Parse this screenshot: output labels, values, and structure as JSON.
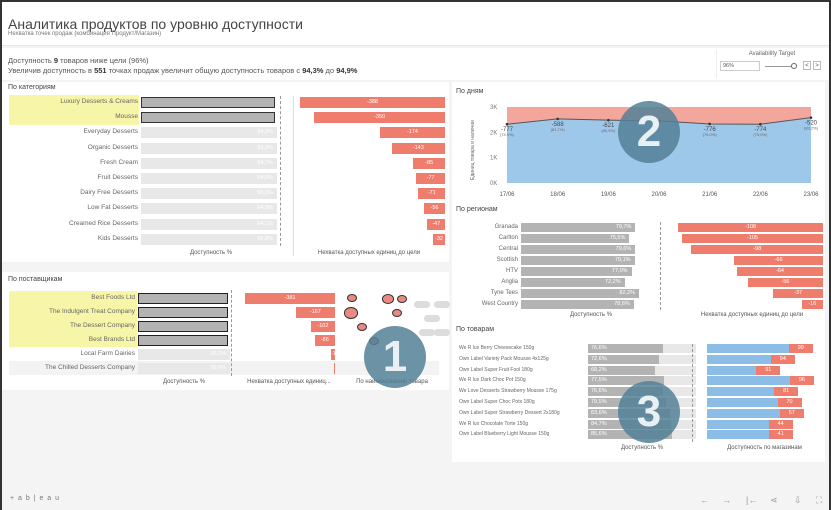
{
  "header": {
    "title": "Аналитика продуктов по уровню доступности",
    "subtitle": "Нехватка точек продаж (комбинация Продукт/Магазин)"
  },
  "info": {
    "line1_pre": "Доступность ",
    "line1_bold": "9",
    "line1_post": " товаров ниже цели (96%)",
    "line2_a": "Увеличив доступность в ",
    "line2_b": "551",
    "line2_c": " точках продаж увеличит общую доступность товаров с ",
    "line2_d": "94,3%",
    "line2_e": " до ",
    "line2_f": "94,9%"
  },
  "target": {
    "label": "Availability Target",
    "value": "96%",
    "prev": "<",
    "next": ">"
  },
  "categories": {
    "title": "По категориям",
    "axis1": "Доступность %",
    "axis2": "Нехватка доступных единиц до цели",
    "rows": [
      {
        "name": "Luxury Desserts & Creams",
        "avail": "",
        "gap": "-388",
        "gapv": 388,
        "hl": true
      },
      {
        "name": "Mousse",
        "avail": "",
        "gap": "-350",
        "gapv": 350,
        "hl": true
      },
      {
        "name": "Everyday Desserts",
        "avail": "94,9%",
        "gap": "-174",
        "gapv": 174
      },
      {
        "name": "Organic Desserts",
        "avail": "93,9%",
        "gap": "-143",
        "gapv": 143
      },
      {
        "name": "Fresh Cream",
        "avail": "94,7%",
        "gap": "-85",
        "gapv": 85
      },
      {
        "name": "Fruit Desserts",
        "avail": "94,8%",
        "gap": "-77",
        "gapv": 77
      },
      {
        "name": "Dairy Free Desserts",
        "avail": "93,9%",
        "gap": "-71",
        "gapv": 71
      },
      {
        "name": "Low Fat Desserts",
        "avail": "94,9%",
        "gap": "-56",
        "gapv": 56
      },
      {
        "name": "Creamed Rice Desserts",
        "avail": "94,1%",
        "gap": "-47",
        "gapv": 47
      },
      {
        "name": "Kids Desserts",
        "avail": "95,8%",
        "gap": "-32",
        "gapv": 32
      }
    ]
  },
  "suppliers": {
    "title": "По поставщикам",
    "axis1": "Доступность %",
    "axis2": "Нехватка доступных единиц...",
    "axis3": "По наименованию товара",
    "rows": [
      {
        "name": "Best Foods Ltd",
        "avail": "",
        "gap": "-381",
        "gapv": 381,
        "hl": true
      },
      {
        "name": "The Indulgent Treat Company",
        "avail": "",
        "gap": "-167",
        "gapv": 167,
        "hl": true
      },
      {
        "name": "The Dessert Company",
        "avail": "",
        "gap": "-102",
        "gapv": 102,
        "hl": true
      },
      {
        "name": "Best Brands Ltd",
        "avail": "",
        "gap": "-86",
        "gapv": 86,
        "hl": true
      },
      {
        "name": "Local Farm Dairies",
        "avail": "95,1%",
        "gap": "-17",
        "gapv": 17
      },
      {
        "name": "The Chilled Desserts Company",
        "avail": "99,0%",
        "gap": "",
        "gapv": 4
      }
    ]
  },
  "days": {
    "title": "По дням",
    "ylabel": "Единиц товара в наличии",
    "yticks": [
      "3K",
      "2K",
      "1K",
      "0K"
    ],
    "chart_data": {
      "type": "area",
      "x": [
        "17/06",
        "18/06",
        "19/06",
        "20/06",
        "21/06",
        "22/06",
        "23/06"
      ],
      "in_stock": [
        2320,
        2530,
        2480,
        2450,
        2330,
        2320,
        2580
      ],
      "target": 3000,
      "gap_labels": [
        "-777",
        "-588",
        "-621",
        "",
        "-776",
        "-774",
        "-520"
      ],
      "pct_labels": [
        "(74,9%)",
        "(81,7%)",
        "(80,9%)",
        "",
        "(75,0%)",
        "(75,0%)",
        "(83,2%)"
      ],
      "ylim": [
        0,
        3000
      ]
    }
  },
  "regions": {
    "title": "По регионам",
    "axis1": "Доступность %",
    "axis2": "Нехватка доступных единиц до цели",
    "rows": [
      {
        "name": "Granada",
        "avail": "79,7%",
        "a": 79.7,
        "gap": "-108",
        "g": 108
      },
      {
        "name": "Carlton",
        "avail": "75,5%",
        "a": 75.5,
        "gap": "-105",
        "g": 105
      },
      {
        "name": "Central",
        "avail": "79,6%",
        "a": 79.6,
        "gap": "-98",
        "g": 98
      },
      {
        "name": "Scottish",
        "avail": "79,1%",
        "a": 79.1,
        "gap": "-66",
        "g": 66
      },
      {
        "name": "HTV",
        "avail": "77,0%",
        "a": 77.0,
        "gap": "-64",
        "g": 64
      },
      {
        "name": "Anglia",
        "avail": "72,2%",
        "a": 72.2,
        "gap": "-56",
        "g": 56
      },
      {
        "name": "Tyne Tees",
        "avail": "82,2%",
        "a": 82.2,
        "gap": "-37",
        "g": 37
      },
      {
        "name": "West Country",
        "avail": "78,6%",
        "a": 78.6,
        "gap": "-16",
        "g": 16
      }
    ]
  },
  "products": {
    "title": "По товарам",
    "axis1": "Доступность %",
    "axis2": "Доступность по магазинам",
    "rows": [
      {
        "name": "We R lux Berry Cheesecake 150g",
        "avail": "76,6%",
        "a": 76.6,
        "blue": 0.73,
        "gap": "99"
      },
      {
        "name": "Own Label Variety Pack Mousse 4x125g",
        "avail": "72,6%",
        "a": 72.6,
        "blue": 0.57,
        "gap": "94"
      },
      {
        "name": "Own Label Super Fruit Fool 180g",
        "avail": "68,2%",
        "a": 68.2,
        "blue": 0.44,
        "gap": "91"
      },
      {
        "name": "We R lux Dark Choc Pot 150g",
        "avail": "77,5%",
        "a": 77.5,
        "blue": 0.74,
        "gap": "96"
      },
      {
        "name": "We Love Desserts Strawberry Mousse 175g",
        "avail": "76,6%",
        "a": 76.6,
        "blue": 0.6,
        "gap": "81"
      },
      {
        "name": "Own Label Super Choc Pots 180g",
        "avail": "79,5%",
        "a": 79.5,
        "blue": 0.63,
        "gap": "70"
      },
      {
        "name": "Own Label Super Strawberry Dessert 2x180g",
        "avail": "83,6%",
        "a": 83.6,
        "blue": 0.65,
        "gap": "57"
      },
      {
        "name": "We R lux Chocolate Torte 150g",
        "avail": "84,7%",
        "a": 84.7,
        "blue": 0.55,
        "gap": "44"
      },
      {
        "name": "Own Label Blueberry Light Mousse 150g",
        "avail": "85,6%",
        "a": 85.6,
        "blue": 0.55,
        "gap": "41"
      }
    ]
  },
  "badges": [
    "1",
    "2",
    "3"
  ],
  "footer": {
    "logo": "+ a b | e a u",
    "icons": [
      "undo-icon",
      "redo-icon",
      "revert-icon",
      "share-icon",
      "download-icon",
      "fullscreen-icon"
    ]
  },
  "colors": {
    "red": "#ee7d6d",
    "grey": "#b3b3b3",
    "light": "#e8e8e8",
    "blue": "#9ec8ea",
    "highlight": "#f7f5a8"
  }
}
